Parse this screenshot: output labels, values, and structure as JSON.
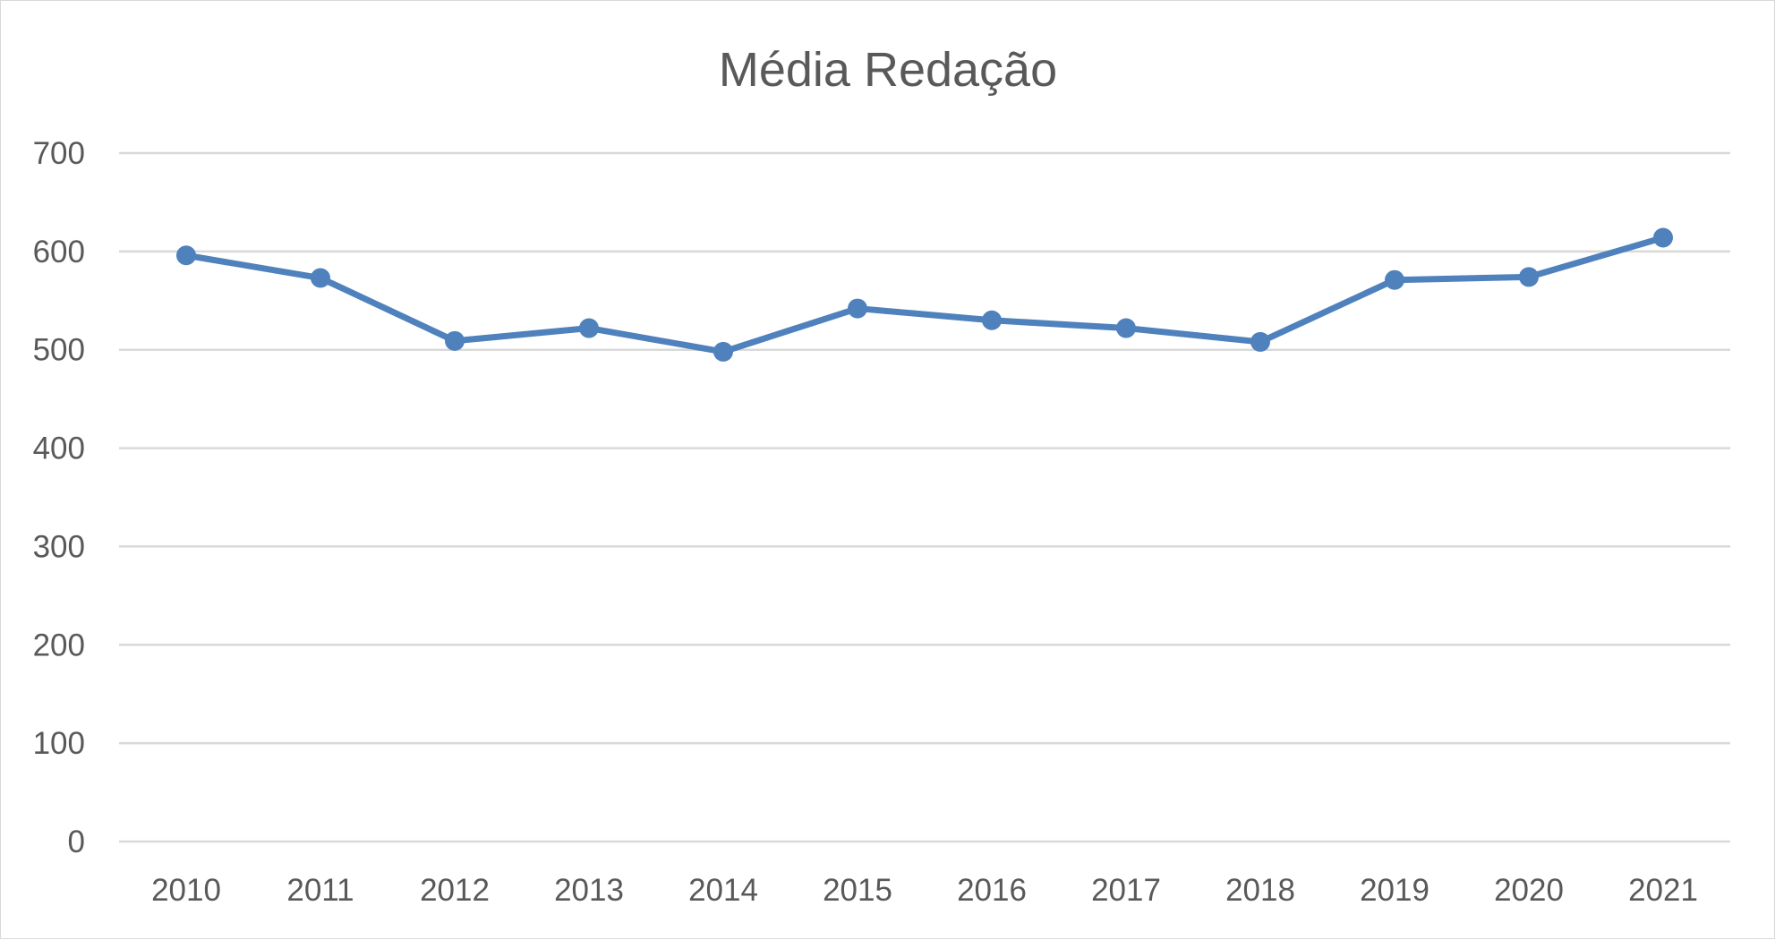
{
  "chart_data": {
    "type": "line",
    "title": "Média Redação",
    "xlabel": "",
    "ylabel": "",
    "categories": [
      "2010",
      "2011",
      "2012",
      "2013",
      "2014",
      "2015",
      "2016",
      "2017",
      "2018",
      "2019",
      "2020",
      "2021"
    ],
    "series": [
      {
        "values": [
          596,
          573,
          509,
          522,
          498,
          542,
          530,
          522,
          508,
          571,
          574,
          614
        ],
        "color": "#4f81bd"
      }
    ],
    "ylim": [
      0,
      700
    ],
    "yticks": [
      0,
      100,
      200,
      300,
      400,
      500,
      600,
      700
    ],
    "grid": true,
    "gridline_color": "#d9d9d9",
    "legend": "none"
  }
}
